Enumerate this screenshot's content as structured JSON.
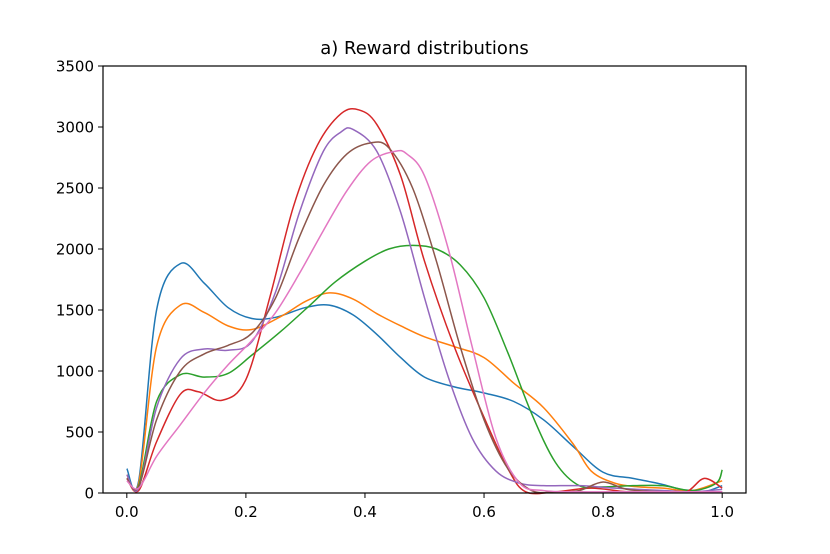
{
  "chart_data": {
    "type": "line",
    "title": "a) Reward distributions",
    "xlabel": "",
    "ylabel": "",
    "xlim": [
      -0.04,
      1.04
    ],
    "ylim": [
      0,
      3500
    ],
    "xticks": [
      "0.0",
      "0.2",
      "0.4",
      "0.6",
      "0.8",
      "1.0"
    ],
    "xtick_values": [
      0.0,
      0.2,
      0.4,
      0.6,
      0.8,
      1.0
    ],
    "yticks": [
      "0",
      "500",
      "1000",
      "1500",
      "2000",
      "2500",
      "3000",
      "3500"
    ],
    "ytick_values": [
      0,
      500,
      1000,
      1500,
      2000,
      2500,
      3000,
      3500
    ],
    "grid": false,
    "legend": "none",
    "series": [
      {
        "color": "#1f77b4",
        "x": [
          0.0,
          0.02,
          0.05,
          0.09,
          0.13,
          0.17,
          0.21,
          0.25,
          0.3,
          0.34,
          0.38,
          0.42,
          0.46,
          0.5,
          0.55,
          0.6,
          0.65,
          0.7,
          0.75,
          0.8,
          0.85,
          0.9,
          0.93,
          0.95,
          0.97,
          1.0
        ],
        "y": [
          200,
          100,
          1500,
          1880,
          1720,
          1520,
          1430,
          1440,
          1520,
          1540,
          1460,
          1300,
          1110,
          950,
          870,
          820,
          750,
          600,
          380,
          170,
          120,
          70,
          30,
          20,
          10,
          60
        ]
      },
      {
        "color": "#ff7f0e",
        "x": [
          0.0,
          0.02,
          0.05,
          0.09,
          0.13,
          0.17,
          0.21,
          0.26,
          0.3,
          0.34,
          0.38,
          0.42,
          0.46,
          0.5,
          0.55,
          0.6,
          0.65,
          0.7,
          0.75,
          0.78,
          0.82,
          0.86,
          0.9,
          0.95,
          1.0
        ],
        "y": [
          150,
          80,
          1200,
          1540,
          1480,
          1370,
          1340,
          1450,
          1570,
          1640,
          1590,
          1470,
          1370,
          1280,
          1200,
          1110,
          900,
          700,
          400,
          180,
          80,
          50,
          40,
          20,
          100
        ]
      },
      {
        "color": "#2ca02c",
        "x": [
          0.0,
          0.02,
          0.05,
          0.09,
          0.13,
          0.17,
          0.21,
          0.26,
          0.31,
          0.35,
          0.4,
          0.44,
          0.48,
          0.52,
          0.56,
          0.6,
          0.64,
          0.68,
          0.72,
          0.76,
          0.8,
          0.85,
          0.9,
          0.95,
          0.99,
          1.0
        ],
        "y": [
          120,
          60,
          750,
          970,
          950,
          980,
          1130,
          1330,
          1550,
          1730,
          1900,
          2000,
          2030,
          2000,
          1870,
          1600,
          1150,
          650,
          250,
          60,
          50,
          60,
          60,
          20,
          80,
          190
        ]
      },
      {
        "color": "#d62728",
        "x": [
          0.0,
          0.02,
          0.05,
          0.09,
          0.12,
          0.16,
          0.2,
          0.24,
          0.28,
          0.32,
          0.36,
          0.39,
          0.42,
          0.46,
          0.5,
          0.55,
          0.6,
          0.64,
          0.67,
          0.72,
          0.78,
          0.84,
          0.9,
          0.94,
          0.97,
          1.0
        ],
        "y": [
          120,
          20,
          420,
          810,
          830,
          760,
          930,
          1600,
          2350,
          2850,
          3110,
          3140,
          3020,
          2600,
          1900,
          1200,
          620,
          200,
          10,
          10,
          40,
          10,
          10,
          10,
          120,
          40
        ]
      },
      {
        "color": "#9467bd",
        "x": [
          0.0,
          0.02,
          0.05,
          0.09,
          0.13,
          0.17,
          0.21,
          0.25,
          0.29,
          0.33,
          0.36,
          0.38,
          0.42,
          0.46,
          0.5,
          0.54,
          0.58,
          0.62,
          0.66,
          0.7,
          0.76,
          0.82,
          0.9,
          0.95,
          1.0
        ],
        "y": [
          150,
          40,
          700,
          1100,
          1180,
          1170,
          1240,
          1650,
          2300,
          2800,
          2960,
          2980,
          2800,
          2300,
          1600,
          950,
          450,
          180,
          80,
          60,
          60,
          40,
          20,
          10,
          30
        ]
      },
      {
        "color": "#8c564b",
        "x": [
          0.0,
          0.02,
          0.05,
          0.09,
          0.13,
          0.17,
          0.21,
          0.25,
          0.29,
          0.33,
          0.37,
          0.41,
          0.44,
          0.48,
          0.52,
          0.56,
          0.6,
          0.64,
          0.68,
          0.72,
          0.76,
          0.8,
          0.84,
          0.9,
          1.0
        ],
        "y": [
          120,
          50,
          600,
          1000,
          1140,
          1210,
          1310,
          1600,
          2100,
          2520,
          2780,
          2870,
          2830,
          2500,
          1900,
          1200,
          600,
          200,
          20,
          10,
          20,
          90,
          30,
          10,
          10
        ]
      },
      {
        "color": "#e377c2",
        "x": [
          0.0,
          0.02,
          0.05,
          0.09,
          0.13,
          0.17,
          0.21,
          0.25,
          0.29,
          0.33,
          0.37,
          0.41,
          0.45,
          0.47,
          0.5,
          0.54,
          0.58,
          0.62,
          0.66,
          0.7,
          0.76,
          0.82,
          0.9,
          0.95,
          1.0
        ],
        "y": [
          100,
          40,
          300,
          560,
          820,
          1050,
          1250,
          1480,
          1800,
          2150,
          2480,
          2720,
          2800,
          2780,
          2600,
          2000,
          1200,
          450,
          80,
          20,
          10,
          10,
          10,
          10,
          10
        ]
      }
    ]
  }
}
